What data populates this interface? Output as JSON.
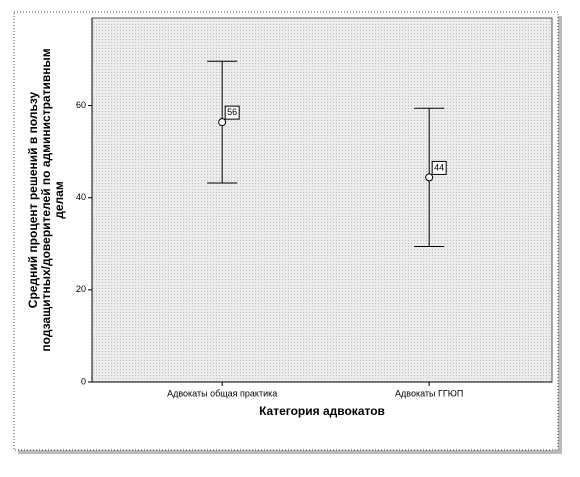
{
  "chart_data": {
    "type": "errorbar",
    "ylabel": [
      "Средний процент решений в пользу",
      "подзащитных/доверителей по административным",
      "делам"
    ],
    "xlabel": "Категория адвокатов",
    "categories": [
      "Адвокаты общая практика",
      "Адвокаты ГГЮП"
    ],
    "values": [
      56.4,
      44.4
    ],
    "value_labels": [
      "56",
      "44"
    ],
    "errors": [
      13.2,
      15.0
    ],
    "color": "#000000",
    "ylim": [
      0,
      79
    ],
    "yticks": [
      0,
      20,
      40,
      60
    ]
  }
}
